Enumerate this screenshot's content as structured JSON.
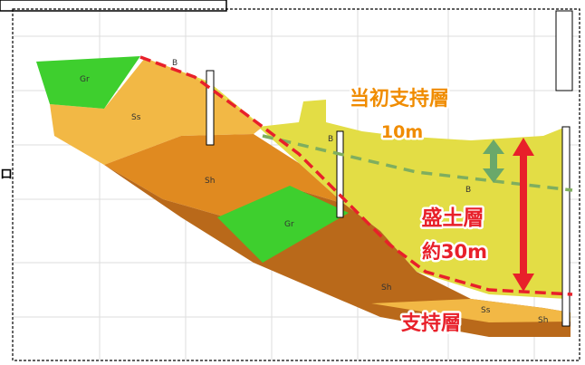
{
  "annotations": {
    "initial_layer": "当初支持層",
    "initial_depth": "10m",
    "fill_layer": "盛土層",
    "fill_depth": "約30m",
    "support_layer": "支持層"
  },
  "layer_labels": [
    "Gr",
    "Ss",
    "B",
    "Sh",
    "Gr",
    "B",
    "B",
    "Sh",
    "Ss",
    "Sh"
  ],
  "edge_text": "ロ"
}
